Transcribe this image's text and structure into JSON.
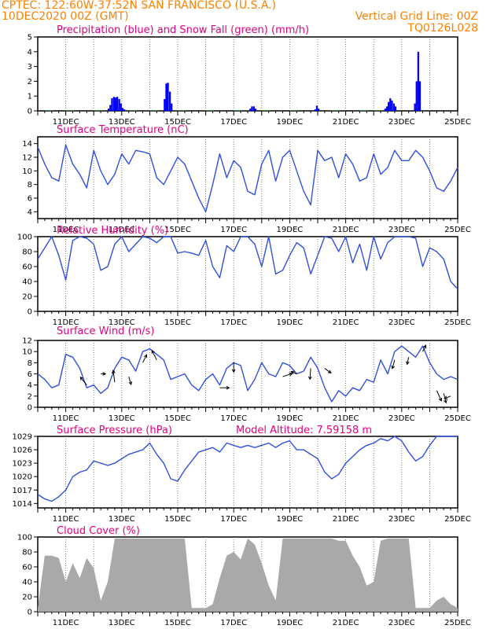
{
  "header": {
    "line1": "CPTEC:   122:60W-37:52N  SAN FRANCISCO (U.S.A.)",
    "line2_left": "10DEC2020 00Z (GMT)",
    "line2_right": "Vertical Grid Line: 00Z",
    "line3_right": "TQ0126L028"
  },
  "colors": {
    "title": "#e6007e",
    "header": "#ff8000",
    "precip": "#0000ff",
    "snow": "#00a000",
    "line": "#3050e0",
    "cloud": "#a9a9a9",
    "arrow": "#000000"
  },
  "x_labels": [
    "11DEC",
    "13DEC",
    "15DEC",
    "17DEC",
    "19DEC",
    "21DEC",
    "23DEC",
    "25DEC"
  ],
  "chart_data": [
    {
      "id": "precip",
      "type": "bar",
      "title": "Precipitation (blue) and Snow Fall (green) (mm/h)",
      "ylim": [
        0,
        5
      ],
      "yticks": [
        0,
        1,
        2,
        3,
        4,
        5
      ],
      "x_unit": "days since 10DEC2020 00Z",
      "series": [
        {
          "name": "Precipitation",
          "color": "#0000ff",
          "x": [
            2.5,
            2.56,
            2.62,
            2.69,
            2.75,
            2.81,
            2.88,
            2.94,
            3.0,
            3.06,
            4.5,
            4.56,
            4.62,
            4.69,
            4.75,
            7.56,
            7.62,
            7.69,
            7.75,
            9.88,
            9.94,
            10.0,
            12.38,
            12.44,
            12.5,
            12.56,
            12.62,
            12.69,
            12.75,
            13.44,
            13.5,
            13.56,
            13.62
          ],
          "values": [
            0.15,
            0.4,
            0.85,
            0.95,
            0.9,
            0.95,
            0.8,
            0.5,
            0.2,
            0.1,
            0.8,
            1.85,
            1.9,
            1.3,
            0.5,
            0.15,
            0.3,
            0.3,
            0.15,
            0.1,
            0.35,
            0.15,
            0.15,
            0.3,
            0.6,
            0.85,
            0.7,
            0.5,
            0.3,
            0.5,
            2.0,
            4.0,
            2.0
          ]
        },
        {
          "name": "Snow Fall",
          "color": "#00a000",
          "x": [
            0.25,
            1.0,
            2.0,
            3.25,
            4.0,
            5.0,
            6.0,
            7.0,
            8.0,
            9.0,
            10.5,
            11.5,
            12.0
          ],
          "values": [
            0.02,
            0.02,
            0.02,
            0.02,
            0.02,
            0.02,
            0.02,
            0.02,
            0.02,
            0.02,
            0.02,
            0.02,
            0.02
          ]
        }
      ]
    },
    {
      "id": "temp",
      "type": "line",
      "title": "Surface Temperature (nC)",
      "ylim": [
        3,
        15
      ],
      "yticks": [
        4,
        6,
        8,
        10,
        12,
        14
      ],
      "x": [
        0.0,
        0.25,
        0.5,
        0.75,
        1.0,
        1.25,
        1.5,
        1.75,
        2.0,
        2.25,
        2.5,
        2.75,
        3.0,
        3.25,
        3.5,
        3.75,
        4.0,
        4.25,
        4.5,
        4.75,
        5.0,
        5.25,
        5.5,
        5.75,
        6.0,
        6.25,
        6.5,
        6.75,
        7.0,
        7.25,
        7.5,
        7.75,
        8.0,
        8.25,
        8.5,
        8.75,
        9.0,
        9.25,
        9.5,
        9.75,
        10.0,
        10.25,
        10.5,
        10.75,
        11.0,
        11.25,
        11.5,
        11.75,
        12.0,
        12.25,
        12.5,
        12.75,
        13.0,
        13.25,
        13.5,
        13.75,
        14.0,
        14.25,
        14.5,
        14.75,
        15.0
      ],
      "values": [
        13.5,
        11.0,
        9.0,
        8.5,
        13.8,
        11.0,
        9.5,
        7.5,
        13.0,
        10.0,
        8.0,
        9.5,
        12.5,
        11.0,
        13.0,
        12.8,
        12.5,
        9.0,
        8.0,
        10.0,
        12.0,
        11.0,
        8.5,
        6.0,
        4.0,
        8.0,
        12.5,
        9.0,
        11.5,
        10.5,
        7.0,
        6.5,
        11.0,
        13.0,
        8.5,
        12.0,
        13.0,
        10.0,
        7.0,
        5.0,
        13.0,
        11.5,
        12.0,
        9.0,
        12.5,
        11.0,
        8.5,
        9.0,
        12.5,
        9.5,
        10.5,
        13.0,
        11.5,
        11.5,
        13.0,
        12.0,
        10.0,
        7.5,
        7.0,
        8.5,
        10.5
      ]
    },
    {
      "id": "rh",
      "type": "line",
      "title": "Relative Humidity (%)",
      "ylim": [
        0,
        100
      ],
      "yticks": [
        0,
        20,
        40,
        60,
        80,
        100
      ],
      "x": [
        0.0,
        0.25,
        0.5,
        0.75,
        1.0,
        1.25,
        1.5,
        1.75,
        2.0,
        2.25,
        2.5,
        2.75,
        3.0,
        3.25,
        3.5,
        3.75,
        4.0,
        4.25,
        4.5,
        4.75,
        5.0,
        5.25,
        5.5,
        5.75,
        6.0,
        6.25,
        6.5,
        6.75,
        7.0,
        7.25,
        7.5,
        7.75,
        8.0,
        8.25,
        8.5,
        8.75,
        9.0,
        9.25,
        9.5,
        9.75,
        10.0,
        10.25,
        10.5,
        10.75,
        11.0,
        11.25,
        11.5,
        11.75,
        12.0,
        12.25,
        12.5,
        12.75,
        13.0,
        13.25,
        13.5,
        13.75,
        14.0,
        14.25,
        14.5,
        14.75,
        15.0
      ],
      "values": [
        70,
        85,
        100,
        75,
        42,
        95,
        100,
        98,
        90,
        55,
        60,
        90,
        100,
        80,
        90,
        100,
        98,
        92,
        100,
        100,
        78,
        80,
        78,
        75,
        95,
        60,
        45,
        88,
        80,
        100,
        100,
        90,
        60,
        100,
        50,
        55,
        75,
        92,
        85,
        50,
        75,
        100,
        98,
        80,
        100,
        65,
        90,
        55,
        100,
        70,
        92,
        100,
        100,
        100,
        98,
        60,
        85,
        80,
        70,
        40,
        30
      ]
    },
    {
      "id": "wind",
      "type": "line",
      "title": "Surface Wind (m/s)",
      "ylim": [
        0,
        12
      ],
      "yticks": [
        0,
        2,
        4,
        6,
        8,
        10,
        12
      ],
      "x": [
        0.0,
        0.25,
        0.5,
        0.75,
        1.0,
        1.25,
        1.5,
        1.75,
        2.0,
        2.25,
        2.5,
        2.75,
        3.0,
        3.25,
        3.5,
        3.75,
        4.0,
        4.25,
        4.5,
        4.75,
        5.0,
        5.25,
        5.5,
        5.75,
        6.0,
        6.25,
        6.5,
        6.75,
        7.0,
        7.25,
        7.5,
        7.75,
        8.0,
        8.25,
        8.5,
        8.75,
        9.0,
        9.25,
        9.5,
        9.75,
        10.0,
        10.25,
        10.5,
        10.75,
        11.0,
        11.25,
        11.5,
        11.75,
        12.0,
        12.25,
        12.5,
        12.75,
        13.0,
        13.25,
        13.5,
        13.75,
        14.0,
        14.25,
        14.5,
        14.75,
        15.0
      ],
      "values": [
        6.0,
        5.0,
        3.5,
        4.0,
        9.5,
        9.0,
        7.0,
        3.5,
        4.0,
        2.5,
        3.5,
        7.0,
        9.0,
        8.5,
        6.5,
        10.0,
        10.5,
        9.5,
        8.5,
        5.0,
        5.5,
        6.0,
        4.0,
        3.0,
        5.0,
        6.0,
        4.0,
        7.0,
        8.0,
        7.5,
        3.0,
        5.0,
        8.0,
        6.0,
        5.5,
        8.0,
        7.5,
        6.0,
        6.5,
        9.0,
        7.0,
        3.5,
        1.0,
        3.0,
        2.0,
        3.5,
        3.0,
        5.0,
        4.5,
        8.5,
        6.0,
        10.0,
        11.0,
        10.0,
        9.0,
        11.0,
        8.0,
        6.0,
        5.0,
        5.5,
        5.0
      ],
      "arrows": {
        "x": [
          1.75,
          2.25,
          2.75,
          3.25,
          3.75,
          4.25,
          6.5,
          7.0,
          8.75,
          9.25,
          9.75,
          10.25,
          12.75,
          13.25,
          13.75,
          14.25,
          14.5,
          14.75
        ],
        "y": [
          4.0,
          6.0,
          4.5,
          5.5,
          8.0,
          8.5,
          3.5,
          8.0,
          5.5,
          6.0,
          7.0,
          7.0,
          8.5,
          9.0,
          10.0,
          3.0,
          2.5,
          2.0
        ],
        "u": [
          -8,
          6,
          -2,
          3,
          5,
          -6,
          12,
          0,
          12,
          -7,
          -1,
          8,
          -3,
          -2,
          4,
          6,
          3,
          -8
        ],
        "v": [
          -10,
          0,
          -15,
          10,
          -10,
          -12,
          0,
          12,
          -4,
          -3,
          14,
          6,
          11,
          9,
          -8,
          13,
          12,
          3
        ]
      }
    },
    {
      "id": "pressure",
      "type": "line",
      "title": "Surface Pressure (hPa)",
      "subtitle": "Model Altitude: 7.59158 m",
      "ylim": [
        1013,
        1029
      ],
      "yticks": [
        1014,
        1017,
        1020,
        1023,
        1026,
        1029
      ],
      "x": [
        0.0,
        0.25,
        0.5,
        0.75,
        1.0,
        1.25,
        1.5,
        1.75,
        2.0,
        2.25,
        2.5,
        2.75,
        3.0,
        3.25,
        3.5,
        3.75,
        4.0,
        4.25,
        4.5,
        4.75,
        5.0,
        5.25,
        5.5,
        5.75,
        6.0,
        6.25,
        6.5,
        6.75,
        7.0,
        7.25,
        7.5,
        7.75,
        8.0,
        8.25,
        8.5,
        8.75,
        9.0,
        9.25,
        9.5,
        9.75,
        10.0,
        10.25,
        10.5,
        10.75,
        11.0,
        11.25,
        11.5,
        11.75,
        12.0,
        12.25,
        12.5,
        12.75,
        13.0,
        13.25,
        13.5,
        13.75,
        14.0,
        14.25,
        14.5,
        14.75,
        15.0
      ],
      "values": [
        1016.0,
        1015.0,
        1014.5,
        1015.5,
        1017.0,
        1020.0,
        1021.0,
        1021.5,
        1023.5,
        1023.0,
        1022.5,
        1023.0,
        1024.0,
        1025.0,
        1025.5,
        1026.0,
        1027.5,
        1025.0,
        1023.0,
        1019.5,
        1019.0,
        1021.5,
        1023.5,
        1025.5,
        1026.0,
        1026.5,
        1025.5,
        1027.5,
        1027.0,
        1026.5,
        1027.0,
        1026.5,
        1027.0,
        1027.5,
        1026.5,
        1027.5,
        1028.0,
        1026.0,
        1026.0,
        1025.0,
        1024.0,
        1021.0,
        1019.5,
        1020.5,
        1023.0,
        1024.5,
        1026.0,
        1027.0,
        1027.5,
        1028.5,
        1028.0,
        1029.0,
        1028.0,
        1025.5,
        1023.5,
        1024.5,
        1027.0,
        1029.0,
        1029.0,
        1029.0,
        1029.0
      ]
    },
    {
      "id": "cloud",
      "type": "area",
      "title": "Cloud Cover (%)",
      "ylim": [
        0,
        100
      ],
      "yticks": [
        0,
        20,
        40,
        60,
        80,
        100
      ],
      "x": [
        0.0,
        0.25,
        0.5,
        0.75,
        1.0,
        1.25,
        1.5,
        1.75,
        2.0,
        2.25,
        2.5,
        2.75,
        3.0,
        3.25,
        3.5,
        3.75,
        4.0,
        4.25,
        4.5,
        4.75,
        5.0,
        5.25,
        5.5,
        5.75,
        6.0,
        6.25,
        6.5,
        6.75,
        7.0,
        7.25,
        7.5,
        7.75,
        8.0,
        8.25,
        8.5,
        8.75,
        9.0,
        9.25,
        9.5,
        9.75,
        10.0,
        10.25,
        10.5,
        10.75,
        11.0,
        11.25,
        11.5,
        11.75,
        12.0,
        12.25,
        12.5,
        12.75,
        13.0,
        13.25,
        13.5,
        13.75,
        14.0,
        14.25,
        14.5,
        14.75,
        15.0
      ],
      "values": [
        5,
        75,
        75,
        72,
        40,
        65,
        45,
        72,
        58,
        15,
        40,
        98,
        98,
        98,
        98,
        98,
        98,
        98,
        98,
        98,
        98,
        98,
        5,
        5,
        5,
        10,
        45,
        75,
        80,
        70,
        98,
        90,
        65,
        35,
        15,
        98,
        98,
        98,
        98,
        98,
        98,
        98,
        98,
        95,
        95,
        75,
        60,
        35,
        40,
        95,
        98,
        98,
        98,
        98,
        5,
        5,
        5,
        15,
        20,
        10,
        5
      ]
    }
  ]
}
